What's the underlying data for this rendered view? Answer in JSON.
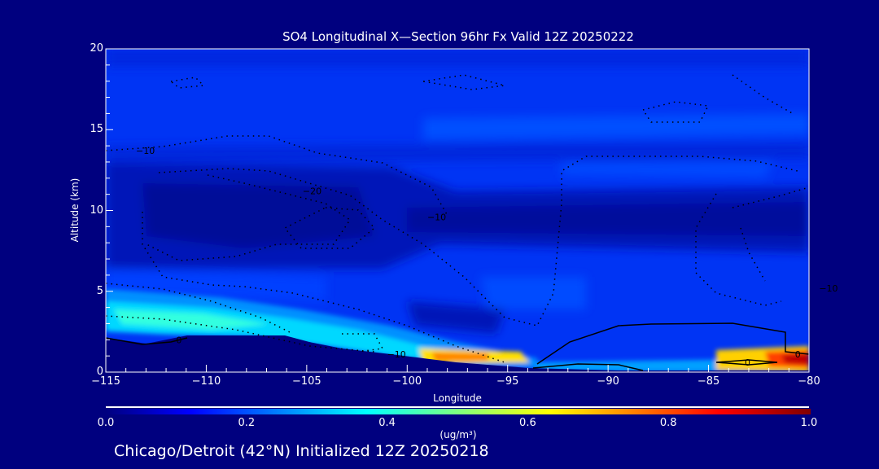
{
  "chart_data": {
    "type": "heatmap",
    "subtype": "filled-contour cross-section with contour lines",
    "title": "SO4 Longitudinal X—Section 96hr  Fx Valid 12Z 20250222",
    "xlabel": "Longitude",
    "ylabel": "Altitude (km)",
    "xlim": [
      -115,
      -80
    ],
    "ylim": [
      0,
      20
    ],
    "x_ticks": [
      -115,
      -110,
      -105,
      -100,
      -95,
      -90,
      -85,
      -80
    ],
    "x_tick_labels": [
      "−115",
      "−110",
      "−105",
      "−100",
      "−95",
      "−90",
      "−85",
      "−80"
    ],
    "y_ticks": [
      0,
      5,
      10,
      15,
      20
    ],
    "y_tick_labels": [
      "0",
      "5",
      "10",
      "15",
      "20"
    ],
    "colorbar": {
      "range": [
        0.0,
        1.0
      ],
      "ticks": [
        0.0,
        0.2,
        0.4,
        0.6,
        0.8,
        1.0
      ],
      "tick_labels": [
        "0.0",
        "0.2",
        "0.4",
        "0.6",
        "0.8",
        "1.0"
      ],
      "units": "(ug/m³)",
      "colormap": [
        "#00007f",
        "#0000ff",
        "#00ffff",
        "#ffff00",
        "#ff0000",
        "#7f0000"
      ]
    },
    "contour_labels": [
      "−10",
      "−20",
      "−10",
      "0",
      "−10",
      "−10",
      "0",
      "0"
    ],
    "highlights": [
      {
        "lon": -97,
        "alt": 0.8,
        "value": 0.7
      },
      {
        "lon": -80.5,
        "alt": 0.6,
        "value": 0.85
      },
      {
        "lon": -110,
        "alt": 3,
        "value": 0.4
      }
    ]
  },
  "footer": "Chicago/Detroit (42°N) Initialized 12Z 20250218",
  "colors": {
    "background": "#00007f",
    "text": "#ffffff"
  }
}
